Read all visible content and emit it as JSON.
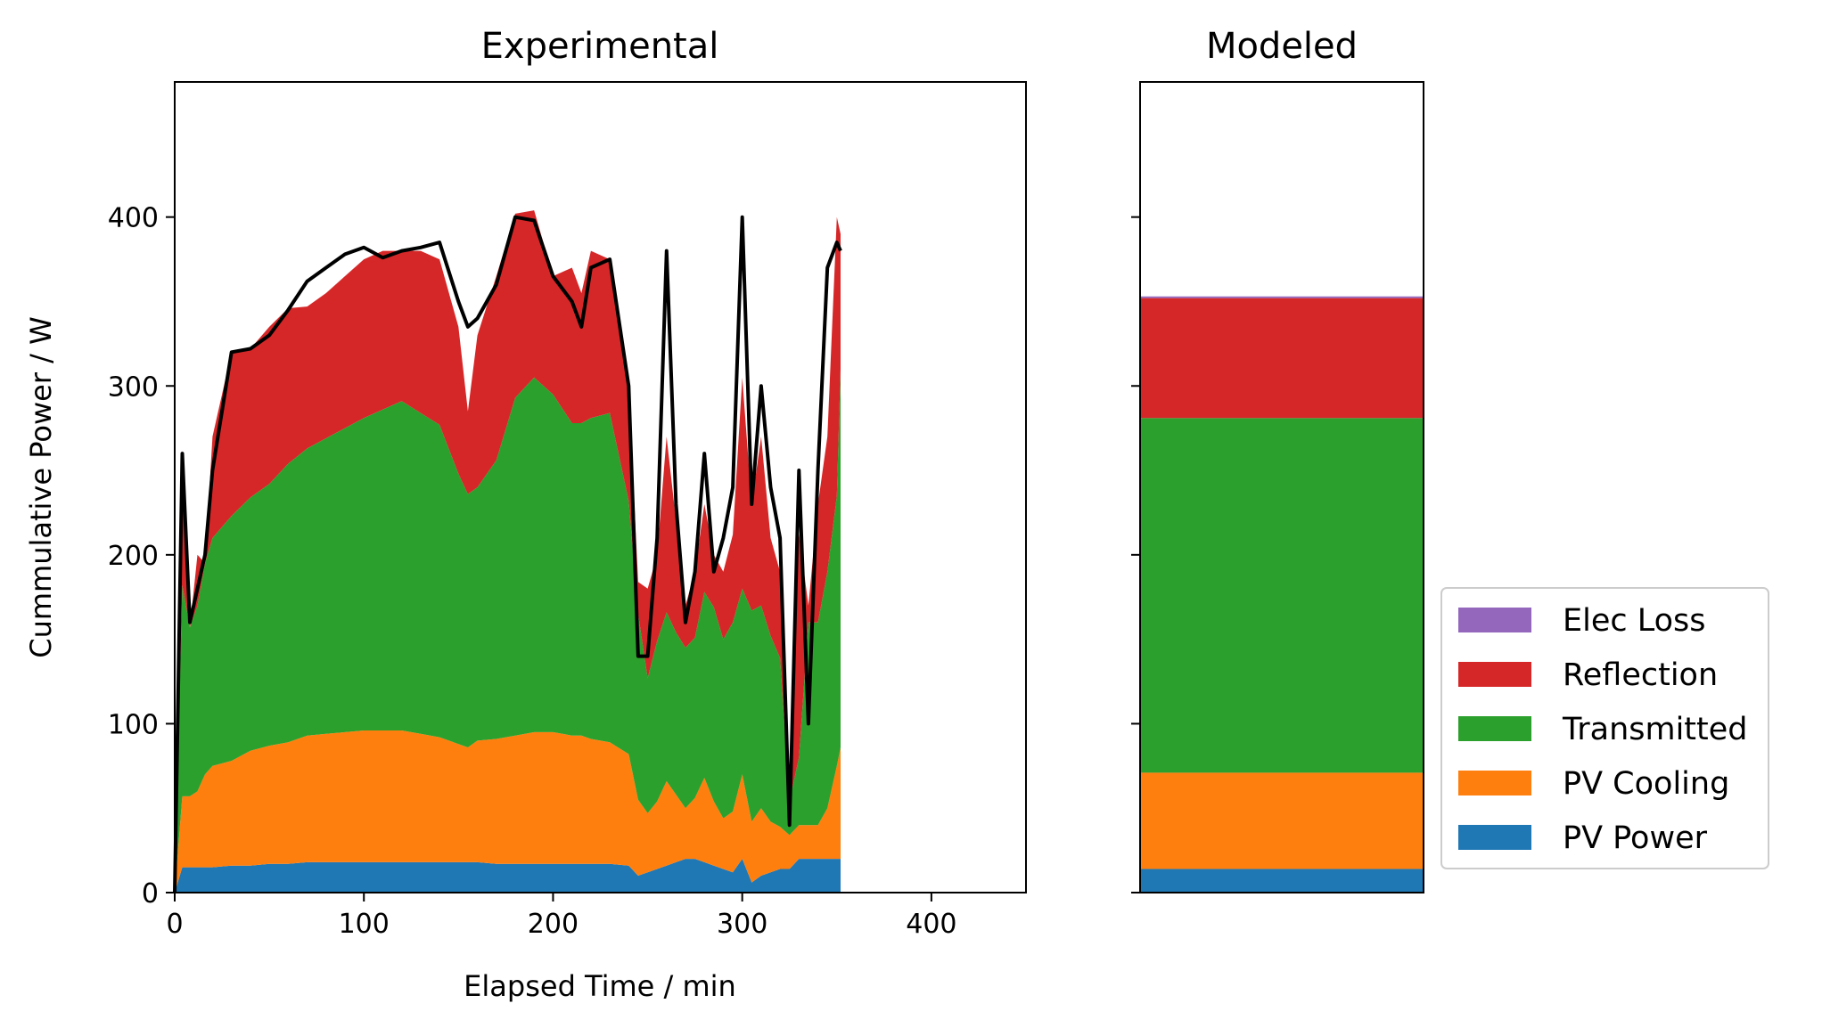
{
  "chart_data": [
    {
      "type": "area",
      "title": "Experimental",
      "xlabel": "Elapsed Time / min",
      "ylabel": "Cummulative Power / W",
      "xlim": [
        0,
        450
      ],
      "ylim": [
        0,
        480
      ],
      "xticks": [
        0,
        100,
        200,
        300,
        400
      ],
      "yticks": [
        0,
        100,
        200,
        300,
        400
      ],
      "grid": false,
      "stacked": true,
      "x": [
        0,
        4,
        8,
        12,
        16,
        20,
        30,
        40,
        50,
        60,
        70,
        80,
        90,
        100,
        110,
        120,
        130,
        140,
        150,
        155,
        160,
        170,
        180,
        190,
        200,
        210,
        215,
        220,
        230,
        240,
        245,
        250,
        255,
        260,
        265,
        270,
        275,
        280,
        285,
        290,
        295,
        300,
        305,
        310,
        315,
        320,
        325,
        330,
        335,
        340,
        345,
        350,
        352
      ],
      "series": [
        {
          "name": "PV Power",
          "color": "#1f77b4",
          "values": [
            0,
            15,
            15,
            15,
            15,
            15,
            16,
            16,
            17,
            17,
            18,
            18,
            18,
            18,
            18,
            18,
            18,
            18,
            18,
            18,
            18,
            17,
            17,
            17,
            17,
            17,
            17,
            17,
            17,
            16,
            10,
            12,
            14,
            16,
            18,
            20,
            20,
            18,
            16,
            14,
            12,
            20,
            6,
            10,
            12,
            14,
            14,
            20,
            20,
            20,
            20,
            20,
            20
          ]
        },
        {
          "name": "PV Cooling",
          "color": "#ff7f0e",
          "values": [
            0,
            42,
            42,
            45,
            55,
            60,
            62,
            68,
            70,
            72,
            75,
            76,
            77,
            78,
            78,
            78,
            76,
            74,
            70,
            68,
            72,
            74,
            76,
            78,
            78,
            76,
            76,
            74,
            72,
            66,
            45,
            35,
            40,
            50,
            40,
            30,
            36,
            50,
            38,
            30,
            36,
            50,
            36,
            40,
            30,
            25,
            20,
            20,
            20,
            20,
            30,
            55,
            66
          ]
        },
        {
          "name": "Transmitted",
          "color": "#2ca02c",
          "values": [
            0,
            125,
            100,
            110,
            125,
            135,
            145,
            150,
            155,
            165,
            170,
            175,
            180,
            185,
            190,
            195,
            190,
            185,
            160,
            150,
            150,
            165,
            200,
            210,
            200,
            185,
            185,
            190,
            195,
            150,
            110,
            80,
            95,
            100,
            96,
            95,
            95,
            110,
            115,
            106,
            112,
            110,
            125,
            120,
            110,
            100,
            20,
            40,
            120,
            120,
            140,
            160,
            224
          ]
        },
        {
          "name": "Reflection",
          "color": "#d62728",
          "values": [
            0,
            80,
            0,
            30,
            0,
            60,
            97,
            88,
            93,
            92,
            84,
            86,
            90,
            94,
            94,
            89,
            96,
            98,
            87,
            49,
            90,
            109,
            109,
            99,
            70,
            92,
            77,
            99,
            91,
            68,
            19,
            53,
            51,
            104,
            66,
            25,
            39,
            52,
            31,
            40,
            52,
            125,
            63,
            100,
            58,
            51,
            11,
            133,
            10,
            70,
            80,
            165,
            80
          ]
        },
        {
          "name": "Elec Loss",
          "color": "#9467bd",
          "values": [
            0,
            0,
            0,
            0,
            0,
            0,
            0,
            0,
            0,
            0,
            0,
            0,
            0,
            0,
            0,
            0,
            0,
            0,
            0,
            0,
            0,
            0,
            0,
            0,
            0,
            0,
            0,
            0,
            0,
            0,
            0,
            0,
            0,
            0,
            0,
            0,
            0,
            0,
            0,
            0,
            0,
            0,
            0,
            0,
            0,
            0,
            0,
            0,
            0,
            0,
            0,
            0,
            0
          ]
        }
      ],
      "total_line": {
        "color": "#000000",
        "values": [
          0,
          260,
          160,
          180,
          200,
          250,
          320,
          322,
          330,
          345,
          362,
          370,
          378,
          382,
          376,
          380,
          382,
          385,
          350,
          335,
          340,
          360,
          400,
          398,
          365,
          350,
          335,
          370,
          375,
          300,
          140,
          140,
          210,
          380,
          230,
          160,
          190,
          260,
          190,
          210,
          240,
          400,
          230,
          300,
          240,
          210,
          40,
          250,
          100,
          250,
          370,
          385,
          380
        ]
      }
    },
    {
      "type": "bar",
      "title": "Modeled",
      "stacked": true,
      "ylim": [
        0,
        480
      ],
      "grid": false,
      "series": [
        {
          "name": "PV Power",
          "color": "#1f77b4",
          "value": 14
        },
        {
          "name": "PV Cooling",
          "color": "#ff7f0e",
          "value": 57
        },
        {
          "name": "Transmitted",
          "color": "#2ca02c",
          "value": 210
        },
        {
          "name": "Reflection",
          "color": "#d62728",
          "value": 71
        },
        {
          "name": "Elec Loss",
          "color": "#9467bd",
          "value": 1
        }
      ],
      "legend": {
        "placement": "lower-right outside",
        "entries": [
          {
            "label": "Elec Loss",
            "color": "#9467bd"
          },
          {
            "label": "Reflection",
            "color": "#d62728"
          },
          {
            "label": "Transmitted",
            "color": "#2ca02c"
          },
          {
            "label": "PV Cooling",
            "color": "#ff7f0e"
          },
          {
            "label": "PV Power",
            "color": "#1f77b4"
          }
        ]
      }
    }
  ]
}
